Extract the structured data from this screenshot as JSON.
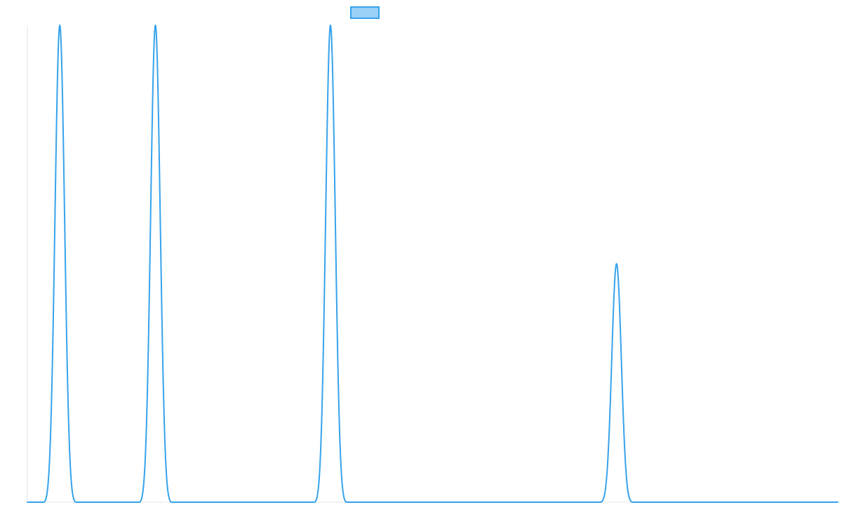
{
  "chart_data": {
    "type": "line",
    "title": "",
    "xlabel": "",
    "ylabel": "",
    "xlim": [
      0,
      100
    ],
    "ylim": [
      0,
      1
    ],
    "grid": false,
    "legend": {
      "placement": "top-center",
      "entries": [
        {
          "name": "",
          "color": "#36a2eb",
          "fill": "#9ad0f5"
        }
      ]
    },
    "series": [
      {
        "name": "",
        "color": "#36a2eb",
        "peaks": [
          {
            "center": 4.0,
            "height": 1.0,
            "half_width": 1.95
          },
          {
            "center": 15.8,
            "height": 1.0,
            "half_width": 1.95
          },
          {
            "center": 37.4,
            "height": 1.0,
            "half_width": 1.95
          },
          {
            "center": 72.7,
            "height": 0.5,
            "half_width": 1.95
          }
        ]
      }
    ]
  }
}
